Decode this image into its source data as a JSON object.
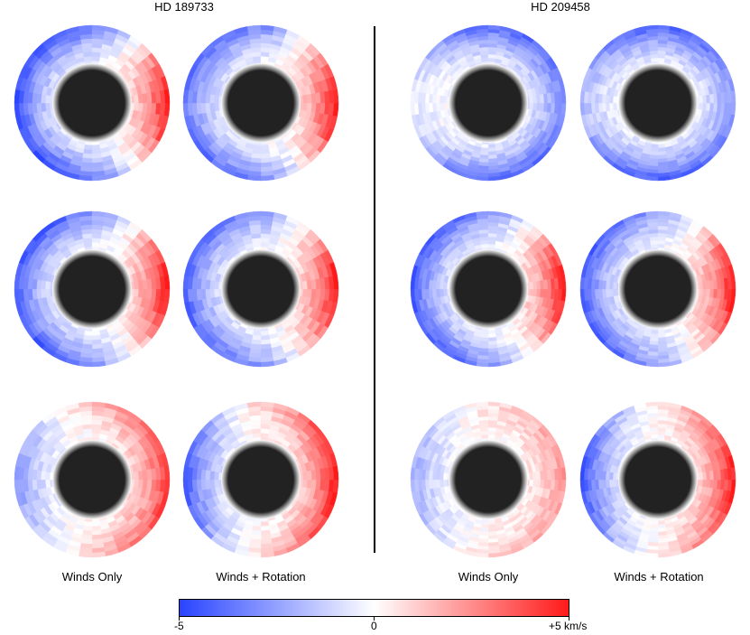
{
  "titles": {
    "left": "HD 189733",
    "right": "HD 209458"
  },
  "column_labels": {
    "c1": "Winds Only",
    "c2": "Winds + Rotation",
    "c3": "Winds Only",
    "c4": "Winds + Rotation"
  },
  "colorbar": {
    "min_label": "-5",
    "mid_label": "0",
    "max_label": "+5 km/s",
    "min_value": -5,
    "max_value": 5,
    "min_color": "#2a44ff",
    "mid_color": "#ffffff",
    "max_color": "#ff1a1a"
  },
  "planet_color": "#222222",
  "panels": [
    {
      "planet": "HD 189733",
      "row": 1,
      "model": "Winds Only",
      "east": 1.0,
      "west": -0.9,
      "band": -0.7,
      "rings": 9,
      "segments": 36
    },
    {
      "planet": "HD 189733",
      "row": 1,
      "model": "Winds + Rotation",
      "east": 1.0,
      "west": -0.7,
      "band": -0.6,
      "rings": 9,
      "segments": 36
    },
    {
      "planet": "HD 209458",
      "row": 1,
      "model": "Winds Only",
      "east": -0.65,
      "west": -0.1,
      "band": -0.75,
      "rings": 11,
      "segments": 40
    },
    {
      "planet": "HD 209458",
      "row": 1,
      "model": "Winds + Rotation",
      "east": -0.55,
      "west": -0.35,
      "band": -0.8,
      "rings": 11,
      "segments": 40
    },
    {
      "planet": "HD 189733",
      "row": 2,
      "model": "Winds Only",
      "east": 1.0,
      "west": -0.85,
      "band": -0.6,
      "rings": 9,
      "segments": 36
    },
    {
      "planet": "HD 189733",
      "row": 2,
      "model": "Winds + Rotation",
      "east": 1.0,
      "west": -0.8,
      "band": -0.5,
      "rings": 9,
      "segments": 36
    },
    {
      "planet": "HD 209458",
      "row": 2,
      "model": "Winds Only",
      "east": 1.0,
      "west": -0.85,
      "band": -0.55,
      "rings": 11,
      "segments": 40
    },
    {
      "planet": "HD 209458",
      "row": 2,
      "model": "Winds + Rotation",
      "east": 1.0,
      "west": -0.85,
      "band": -0.5,
      "rings": 11,
      "segments": 40
    },
    {
      "planet": "HD 189733",
      "row": 3,
      "model": "Winds Only",
      "east": 0.85,
      "west": -0.55,
      "band": 0.25,
      "rings": 9,
      "segments": 36
    },
    {
      "planet": "HD 189733",
      "row": 3,
      "model": "Winds + Rotation",
      "east": 1.0,
      "west": -0.9,
      "band": 0.2,
      "rings": 9,
      "segments": 36
    },
    {
      "planet": "HD 209458",
      "row": 3,
      "model": "Winds Only",
      "east": 0.45,
      "west": -0.45,
      "band": 0.15,
      "rings": 11,
      "segments": 40
    },
    {
      "planet": "HD 209458",
      "row": 3,
      "model": "Winds + Rotation",
      "east": 0.95,
      "west": -0.9,
      "band": 0.1,
      "rings": 11,
      "segments": 40
    }
  ]
}
